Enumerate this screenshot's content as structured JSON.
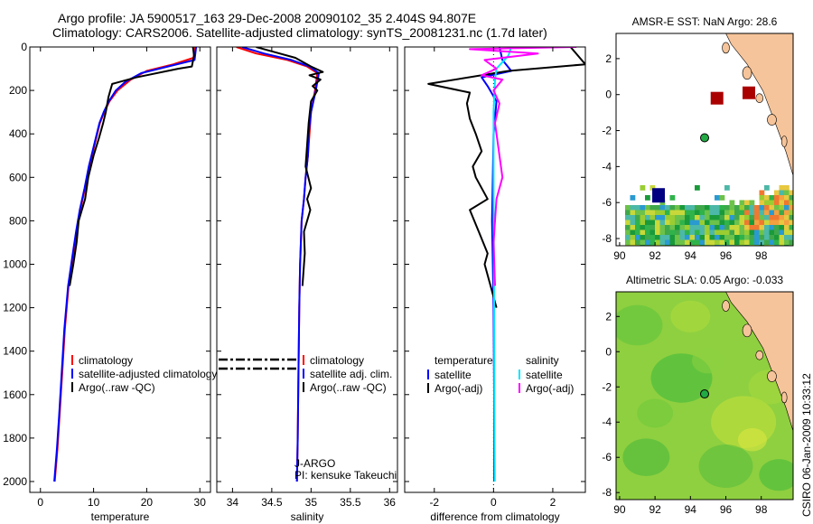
{
  "title_line1": "Argo profile: JA 5900517_163 29-Dec-2008 20090102_35 2.404S 94.807E",
  "title_line2": "Climatology: CARS2006. Satellite-adjusted climatology: synTS_20081231.nc (1.7d later)",
  "credit": "CSIRO 06-Jan-2009 10:33:12",
  "colors": {
    "red": "#ff0000",
    "blue": "#0000ff",
    "black": "#000000",
    "cyan": "#00e5ff",
    "magenta": "#ff00ff",
    "land": "#f6c49a",
    "float": "#22aa44",
    "box": "#aa0000",
    "navy": "#000080"
  },
  "chart_data": [
    {
      "id": "temperature",
      "type": "line",
      "xlabel": "temperature",
      "xlim": [
        -2,
        32
      ],
      "xticks": [
        0,
        10,
        20,
        30
      ],
      "ylim": [
        2050,
        0
      ],
      "yticks": [
        0,
        200,
        400,
        600,
        800,
        1000,
        1200,
        1400,
        1600,
        1800,
        2000
      ],
      "legend": {
        "location": "bottom-left",
        "entries": [
          "climatology",
          "satellite-adjusted climatology",
          "Argo(..raw -QC)"
        ]
      },
      "series": [
        {
          "name": "climatology",
          "color": "#ff0000",
          "x": [
            29.1,
            28.8,
            25.0,
            20.0,
            17.0,
            14.5,
            13.0,
            12.0,
            11.2,
            10.2,
            9.2,
            8.4,
            7.5,
            6.8,
            6.2,
            5.3,
            4.6,
            4.1,
            3.6,
            3.2,
            2.7
          ],
          "y": [
            0,
            50,
            80,
            110,
            150,
            200,
            250,
            300,
            350,
            450,
            550,
            650,
            750,
            850,
            950,
            1100,
            1300,
            1500,
            1700,
            1850,
            2000
          ]
        },
        {
          "name": "satellite-adjusted climatology",
          "color": "#0000ff",
          "x": [
            29.3,
            29.0,
            24.0,
            19.0,
            16.0,
            14.2,
            12.9,
            11.9,
            11.1,
            10.1,
            9.1,
            8.3,
            7.4,
            6.7,
            6.1,
            5.2,
            4.5,
            4.0,
            3.5,
            3.1,
            2.6
          ],
          "y": [
            0,
            60,
            90,
            120,
            160,
            200,
            250,
            300,
            350,
            450,
            550,
            650,
            750,
            850,
            950,
            1100,
            1300,
            1500,
            1700,
            1850,
            2000
          ]
        },
        {
          "name": "Argo(..raw -QC)",
          "color": "#000000",
          "x": [
            28.7,
            28.9,
            28.5,
            26.0,
            18.0,
            13.5,
            12.8,
            12.3,
            11.8,
            11.0,
            10.0,
            9.0,
            8.4,
            7.2,
            6.8,
            6.2,
            5.5
          ],
          "y": [
            0,
            40,
            90,
            100,
            140,
            170,
            230,
            300,
            350,
            420,
            500,
            600,
            700,
            800,
            900,
            1000,
            1100
          ]
        }
      ]
    },
    {
      "id": "salinity",
      "type": "line",
      "xlabel": "salinity",
      "xlim": [
        33.8,
        36.1
      ],
      "xticks": [
        34,
        34.5,
        35,
        35.5,
        36
      ],
      "ylim": [
        2050,
        0
      ],
      "yticks": [
        0,
        200,
        400,
        600,
        800,
        1000,
        1200,
        1400,
        1600,
        1800,
        2000
      ],
      "legend": {
        "location": "bottom-right",
        "entries": [
          "climatology",
          "satellite adj. clim.",
          "Argo(..raw -QC)"
        ]
      },
      "annotations": [
        "J-ARGO",
        "PI: kensuke Takeuchi"
      ],
      "series": [
        {
          "name": "climatology",
          "color": "#ff0000",
          "x": [
            34.05,
            34.3,
            34.7,
            34.95,
            35.08,
            35.05,
            35.0,
            34.98,
            34.96,
            34.93,
            34.91,
            34.88,
            34.86,
            34.85,
            34.84,
            34.83,
            34.82
          ],
          "y": [
            0,
            30,
            60,
            90,
            120,
            200,
            300,
            400,
            500,
            600,
            700,
            800,
            1000,
            1200,
            1500,
            1800,
            2000
          ]
        },
        {
          "name": "satellite adj. clim.",
          "color": "#0000ff",
          "x": [
            34.12,
            34.4,
            34.75,
            34.98,
            35.1,
            35.06,
            35.0,
            34.97,
            34.96,
            34.93,
            34.91,
            34.88,
            34.86,
            34.85,
            34.84,
            34.83,
            34.82
          ],
          "y": [
            0,
            30,
            60,
            90,
            120,
            200,
            300,
            400,
            500,
            600,
            700,
            800,
            1000,
            1200,
            1500,
            1800,
            2000
          ]
        },
        {
          "name": "Argo(..raw -QC)",
          "color": "#000000",
          "x": [
            34.3,
            34.5,
            34.8,
            35.0,
            35.15,
            34.98,
            35.12,
            35.02,
            35.08,
            35.0,
            34.97,
            34.95,
            34.93,
            35.0,
            34.95,
            34.99,
            34.91,
            34.92,
            34.89
          ],
          "y": [
            0,
            20,
            50,
            90,
            115,
            130,
            150,
            180,
            200,
            250,
            350,
            450,
            550,
            650,
            700,
            750,
            850,
            950,
            1100
          ]
        }
      ]
    },
    {
      "id": "difference",
      "type": "line",
      "xlabel": "difference from climatology",
      "xlim": [
        -3,
        3.1
      ],
      "xticks": [
        -2,
        0,
        2
      ],
      "ylim": [
        2050,
        0
      ],
      "yticks": [
        0,
        200,
        400,
        600,
        800,
        1000,
        1200,
        1400,
        1600,
        1800,
        2000
      ],
      "legend": {
        "location": "bottom",
        "temperature_title": "temperature",
        "salinity_title": "salinity",
        "temperature_entries": [
          "satellite",
          "Argo(-adj)"
        ],
        "salinity_entries": [
          "satellite",
          "Argo(-adj)"
        ]
      },
      "series": [
        {
          "name": "temperature satellite",
          "color": "#0000ff",
          "x": [
            0.2,
            0.3,
            0.6,
            -0.4,
            -0.2,
            0.1,
            0.0,
            -0.05,
            0.0,
            0.02,
            0.02
          ],
          "y": [
            0,
            60,
            110,
            140,
            180,
            250,
            400,
            800,
            1200,
            1600,
            2000
          ]
        },
        {
          "name": "temperature Argo(-adj)",
          "color": "#000000",
          "x": [
            2.6,
            3.1,
            0.5,
            -2.2,
            -0.8,
            -0.9,
            -0.8,
            -0.6,
            -0.4,
            -0.7,
            -0.6,
            -0.2,
            -0.8,
            -0.5,
            -0.2,
            -0.3,
            -0.1,
            0.1
          ],
          "y": [
            0,
            80,
            110,
            170,
            210,
            260,
            330,
            400,
            480,
            550,
            600,
            700,
            750,
            850,
            950,
            1000,
            1100,
            1200
          ]
        },
        {
          "name": "salinity satellite",
          "color": "#00e5ff",
          "x": [
            0.6,
            0.5,
            0.3,
            0.1,
            0.05,
            0.0,
            0.0,
            0.02,
            0.03,
            0.04
          ],
          "y": [
            0,
            40,
            70,
            100,
            150,
            300,
            700,
            1200,
            1600,
            2000
          ]
        },
        {
          "name": "salinity Argo(-adj)",
          "color": "#ff00ff",
          "x": [
            2.8,
            -0.8,
            1.5,
            -0.3,
            0.1,
            -0.4,
            0.3,
            0.0,
            0.2,
            0.05,
            0.3,
            0.1,
            0.0,
            0.05
          ],
          "y": [
            0,
            10,
            30,
            60,
            100,
            130,
            150,
            200,
            260,
            350,
            600,
            700,
            900,
            1100
          ]
        }
      ]
    }
  ],
  "maps": [
    {
      "id": "sst",
      "title": "AMSR-E SST: NaN Argo: 28.6",
      "xlim": [
        89.8,
        99.8
      ],
      "ylim": [
        -8.4,
        3.4
      ],
      "xticks": [
        90,
        92,
        94,
        96,
        98
      ],
      "yticks": [
        2,
        0,
        -2,
        -4,
        -6,
        -8
      ],
      "float": [
        94.8,
        -2.4
      ]
    },
    {
      "id": "sla",
      "title": "Altimetric SLA: 0.05 Argo: -0.033",
      "xlim": [
        89.8,
        99.8
      ],
      "ylim": [
        -8.4,
        3.4
      ],
      "xticks": [
        90,
        92,
        94,
        96,
        98
      ],
      "yticks": [
        2,
        0,
        -2,
        -4,
        -6,
        -8
      ],
      "float": [
        94.8,
        -2.4
      ]
    }
  ]
}
